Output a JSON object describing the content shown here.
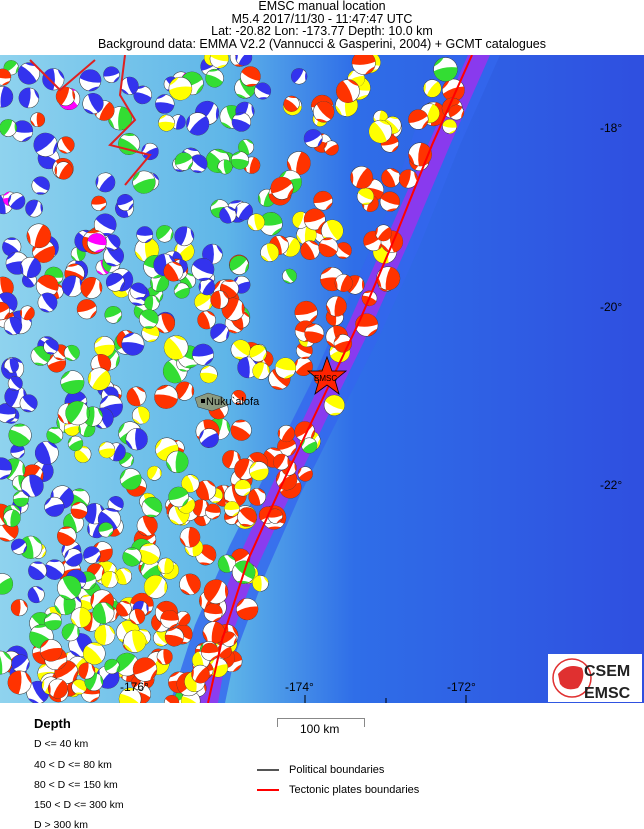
{
  "header": {
    "title": "EMSC manual location",
    "event_line": "M5.4  2017/11/30 - 11:47:47 UTC",
    "location_line": "Lat: -20.82    Lon: -173.77      Depth:  10.0 km",
    "background_line": "Background data: EMMA V2.2 (Vannucci & Gasperini, 2004) + GCMT catalogues"
  },
  "map": {
    "lat_labels": [
      "-18°",
      "-20°",
      "-22°"
    ],
    "lon_labels": [
      "-176°",
      "-174°",
      "-172°"
    ],
    "place_label": "Nuku`alofa",
    "epicenter_label": "EMSC",
    "colors": {
      "plate_boundary": "#ff0000",
      "epicenter": "#ff2200",
      "shallow": "#ff3300",
      "d40_80": "#ffff00",
      "d80_150": "#33dd33",
      "d150_300": "#3333ee",
      "deep": "#ff00ff"
    }
  },
  "legend": {
    "depth_title": "Depth",
    "depth_items": [
      "D <= 40 km",
      "40 < D <= 80 km",
      "80 < D <= 150 km",
      "150 < D <= 300 km",
      "D > 300 km"
    ],
    "scale_label": "100 km",
    "political": "Political boundaries",
    "tectonic": "Tectonic plates boundaries",
    "political_color": "#555555",
    "tectonic_color": "#ff0000"
  },
  "logo": {
    "top": "CSEM",
    "bottom": "EMSC"
  }
}
